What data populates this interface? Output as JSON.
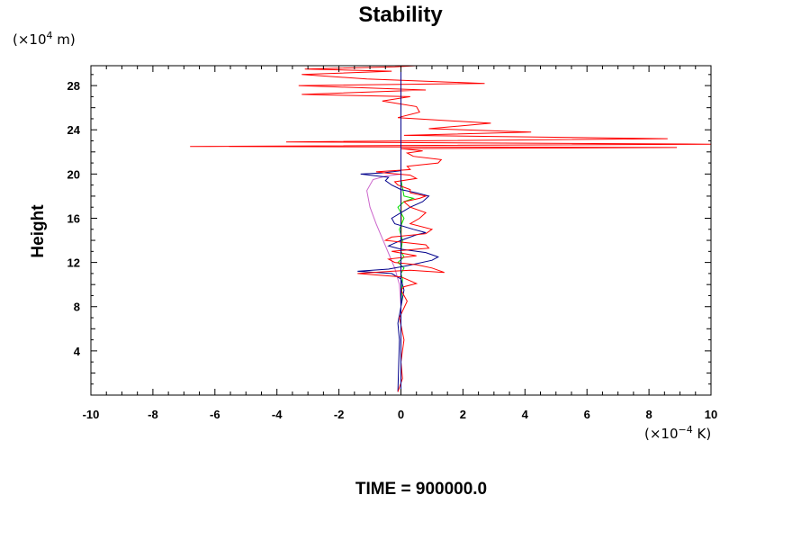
{
  "chart_data": {
    "type": "line",
    "title": "Stability",
    "ylabel": "Height",
    "xlabel": "",
    "y_unit_prefix": "(×10",
    "y_unit_exp": "4",
    "y_unit_suffix": " m)",
    "x_unit_prefix": "(×10",
    "x_unit_exp": "−4",
    "x_unit_suffix": " K)",
    "xlim": [
      -10,
      10
    ],
    "ylim": [
      0,
      29.8
    ],
    "x_ticks": [
      "-10",
      "-8",
      "-6",
      "-4",
      "-2",
      "0",
      "2",
      "4",
      "6",
      "8",
      "10"
    ],
    "y_ticks": [
      "4",
      "8",
      "12",
      "16",
      "20",
      "24",
      "28"
    ],
    "grid": false,
    "legend": "none",
    "footer": "TIME = 900000.0",
    "series": [
      {
        "color": "#cc66cc",
        "x": [
          0,
          0,
          -0.05,
          -0.2,
          -0.35,
          -0.5,
          -0.65,
          -0.8,
          -1.0,
          -1.1,
          -0.9,
          -0.5,
          0
        ],
        "y": [
          0.3,
          8,
          10,
          11.5,
          12.5,
          13.5,
          14.5,
          15.5,
          17,
          18.5,
          19.5,
          19.8,
          20
        ]
      },
      {
        "color": "#ffcc00",
        "x": [
          0,
          0,
          0,
          0.02,
          0,
          0
        ],
        "y": [
          0.3,
          6,
          12,
          16,
          19,
          29.8
        ]
      },
      {
        "color": "#00dd00",
        "x": [
          0,
          0,
          0.05,
          0,
          0.1,
          -0.1,
          0.1,
          0,
          0.05,
          -0.05,
          0.1,
          -0.1,
          0.1,
          0.4,
          0.1,
          0,
          0
        ],
        "y": [
          0.3,
          8,
          10.5,
          11,
          11.5,
          12,
          12.5,
          13,
          14,
          15,
          16,
          17,
          17.5,
          17.8,
          18,
          19.5,
          20
        ]
      },
      {
        "color": "#00008b",
        "x": [
          -0.1,
          -0.05,
          -0.1,
          0,
          0.1,
          0,
          -0.3,
          -1.4,
          -0.4,
          0.2,
          1.0,
          1.2,
          0.8,
          0,
          -0.4,
          0,
          0.5,
          0.8,
          0.4,
          -0.2,
          -0.3,
          0,
          0.3,
          0.7,
          0.9,
          0.5,
          0,
          -0.3,
          -0.5,
          -0.4,
          -1.3,
          -0.6,
          0,
          0
        ],
        "y": [
          0.3,
          5,
          6.5,
          8,
          9.5,
          10.5,
          11,
          11.2,
          11.4,
          11.7,
          12.2,
          12.5,
          12.9,
          13.2,
          13.5,
          14,
          14.5,
          14.7,
          15,
          15.5,
          16,
          16.5,
          17,
          17.5,
          18,
          18.3,
          18.6,
          19,
          19.4,
          19.7,
          20,
          20.1,
          20.3,
          29.8
        ]
      },
      {
        "color": "#ff0000",
        "x": [
          -0.1,
          0.05,
          0,
          0.1,
          -0.05,
          0.2,
          0,
          0.1,
          0.5,
          0,
          -1.4,
          -0.3,
          0.3,
          1.4,
          1.0,
          0.5,
          -0.2,
          -0.4,
          0.5,
          -0.3,
          0.9,
          0.8,
          -0.5,
          -0.3,
          0.8,
          1.0,
          0.3,
          0.6,
          0.8,
          0.3,
          0.1,
          0.6,
          0.8,
          0.3,
          0.3,
          -0.1,
          -0.2,
          0.5,
          0.3,
          -0.5,
          -0.8,
          0.3,
          0.2,
          1.2,
          1.3,
          0.4,
          0.2,
          0.7,
          0,
          8.9,
          -6.8,
          10,
          -3.7,
          8.6,
          0.1,
          4.2,
          0.9,
          2.9,
          -0.1,
          0.6,
          0.5,
          -0.6,
          0.3,
          -3.2,
          0.8,
          -3.3,
          2.7,
          -1.1,
          -3.2,
          -0.3,
          -3.1,
          -0.2,
          0.5
        ],
        "y": [
          0.3,
          1.5,
          3,
          5,
          7,
          8.5,
          9.5,
          9.8,
          10.1,
          10.7,
          11,
          11.2,
          11.3,
          11.1,
          11.5,
          11.8,
          12.0,
          12.3,
          12.6,
          13,
          13.3,
          13.6,
          14,
          14.3,
          14.6,
          15,
          15.5,
          16,
          16.5,
          17,
          17.5,
          17.8,
          18,
          18.3,
          18.6,
          19,
          19.3,
          19.6,
          19.9,
          20.1,
          20.2,
          20.4,
          20.7,
          21,
          21.3,
          21.6,
          21.9,
          22.1,
          22.3,
          22.4,
          22.5,
          22.7,
          22.9,
          23.2,
          23.5,
          23.8,
          24.1,
          24.6,
          25.1,
          25.6,
          26.1,
          26.6,
          27,
          27.2,
          27.6,
          28,
          28.2,
          28.6,
          29,
          29.3,
          29.5,
          29.7,
          29.8
        ]
      },
      {
        "color": "#000000",
        "x": [
          0,
          0,
          0,
          0,
          0,
          0,
          0
        ],
        "y": [
          0.3,
          4,
          7,
          10,
          15,
          20,
          29.8
        ]
      }
    ]
  }
}
